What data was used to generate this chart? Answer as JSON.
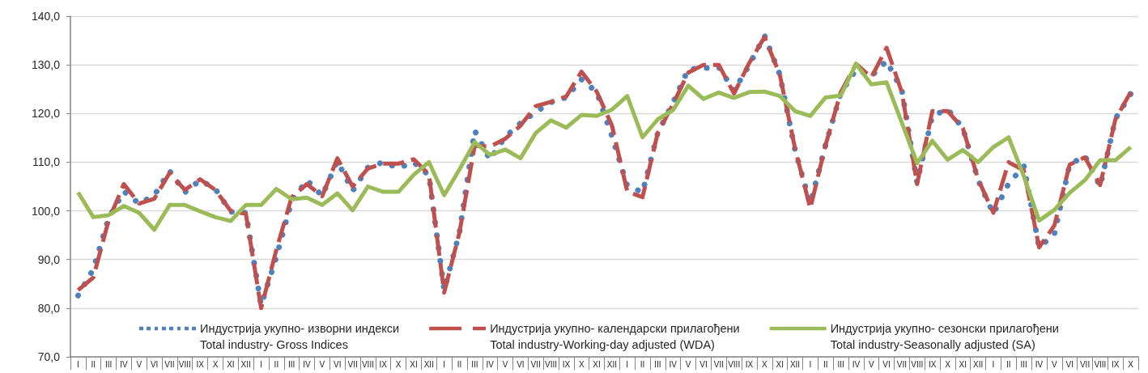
{
  "chart_data": {
    "type": "line",
    "categories": [
      "I",
      "II",
      "III",
      "IV",
      "V",
      "VI",
      "VII",
      "VIII",
      "IX",
      "X",
      "XI",
      "XII",
      "I",
      "II",
      "III",
      "IV",
      "V",
      "VI",
      "VII",
      "VIII",
      "IX",
      "X",
      "XI",
      "XII",
      "I",
      "II",
      "III",
      "IV",
      "V",
      "VI",
      "VII",
      "VIII",
      "IX",
      "X",
      "XI",
      "XII",
      "I",
      "II",
      "III",
      "IV",
      "V",
      "VI",
      "VII",
      "VIII",
      "IX",
      "X",
      "XI",
      "XII",
      "I",
      "II",
      "III",
      "IV",
      "V",
      "VI",
      "VII",
      "VIII",
      "IX",
      "X",
      "XI",
      "XII",
      "I",
      "II",
      "III",
      "IV",
      "V",
      "VI",
      "VII",
      "VIII",
      "IX",
      "X"
    ],
    "series": [
      {
        "name": "Индустрија укупно- изворни индекси\nTotal industry- Gross Indices",
        "color": "#4f81bd",
        "line_style": "dotted",
        "values": [
          82.6,
          88.0,
          98.5,
          104.0,
          101.5,
          103.2,
          108.2,
          103.8,
          106.3,
          104.5,
          99.8,
          99.6,
          80.6,
          90.5,
          102.0,
          106.3,
          103.1,
          110.2,
          104.1,
          108.9,
          110.0,
          108.8,
          110.0,
          107.3,
          83.7,
          95.5,
          116.5,
          110.5,
          115.2,
          118.0,
          120.3,
          122.3,
          123.3,
          127.0,
          124.4,
          115.3,
          105.2,
          103.8,
          116.0,
          122.2,
          129.1,
          129.3,
          129.5,
          124.7,
          130.0,
          136.0,
          128.0,
          112.5,
          101.5,
          113.5,
          124.2,
          129.0,
          127.7,
          130.8,
          124.8,
          105.8,
          119.5,
          120.9,
          117.0,
          106.3,
          99.4,
          105.6,
          109.2,
          92.5,
          95.2,
          109.5,
          111.3,
          105.0,
          118.9,
          124.0
        ]
      },
      {
        "name": "Индустрија укупно- календарски прилагођени\nTotal industry-Working-day adjusted (WDA)",
        "color": "#c0504d",
        "line_style": "dashed",
        "values": [
          83.7,
          86.3,
          98.0,
          105.5,
          101.5,
          102.5,
          107.8,
          104.3,
          106.5,
          104.3,
          100.0,
          99.4,
          80.0,
          92.0,
          102.8,
          105.5,
          103.0,
          110.8,
          105.0,
          108.7,
          109.7,
          109.7,
          110.6,
          107.5,
          83.2,
          95.5,
          113.4,
          113.2,
          114.8,
          117.5,
          121.5,
          122.4,
          123.5,
          128.6,
          124.5,
          117.5,
          104.0,
          102.8,
          116.0,
          121.9,
          128.4,
          130.0,
          130.0,
          124.1,
          130.4,
          135.7,
          128.0,
          112.8,
          100.5,
          113.5,
          124.4,
          130.2,
          127.4,
          133.5,
          124.4,
          105.5,
          120.5,
          120.5,
          117.0,
          106.5,
          99.6,
          110.0,
          108.3,
          92.5,
          97.0,
          109.5,
          111.0,
          105.3,
          118.8,
          124.4
        ]
      },
      {
        "name": "Индустрија укупно- сезонски прилагођени\nTotal industry-Seasonally adjusted (SA)",
        "color": "#9bbb59",
        "line_style": "solid",
        "values": [
          103.8,
          98.7,
          99.1,
          101.0,
          99.6,
          96.1,
          101.2,
          101.2,
          99.9,
          98.7,
          97.9,
          101.2,
          101.2,
          104.5,
          102.4,
          102.7,
          101.2,
          103.6,
          100.1,
          105.0,
          103.9,
          103.9,
          107.4,
          110.0,
          103.2,
          108.5,
          114.1,
          111.5,
          112.6,
          110.8,
          116.0,
          118.6,
          117.1,
          119.7,
          119.5,
          120.8,
          123.6,
          115.1,
          118.8,
          120.7,
          125.7,
          123.0,
          124.3,
          123.2,
          124.4,
          124.5,
          123.6,
          120.5,
          119.5,
          123.3,
          123.7,
          130.2,
          126.0,
          126.4,
          118.1,
          109.8,
          114.4,
          110.5,
          112.5,
          110.0,
          113.1,
          115.1,
          107.1,
          98.0,
          100.2,
          103.7,
          106.3,
          110.4,
          110.4,
          113.1
        ]
      }
    ],
    "ylim": [
      70,
      140
    ],
    "yticks": [
      {
        "value": 70,
        "label": "70,0"
      },
      {
        "value": 80,
        "label": "80,0"
      },
      {
        "value": 90,
        "label": "90,0"
      },
      {
        "value": 100,
        "label": "100,0"
      },
      {
        "value": 110,
        "label": "110,0"
      },
      {
        "value": 120,
        "label": "120,0"
      },
      {
        "value": 130,
        "label": "130,0"
      },
      {
        "value": 140,
        "label": "140,0"
      }
    ],
    "grid": "y",
    "legend": "bottom"
  }
}
